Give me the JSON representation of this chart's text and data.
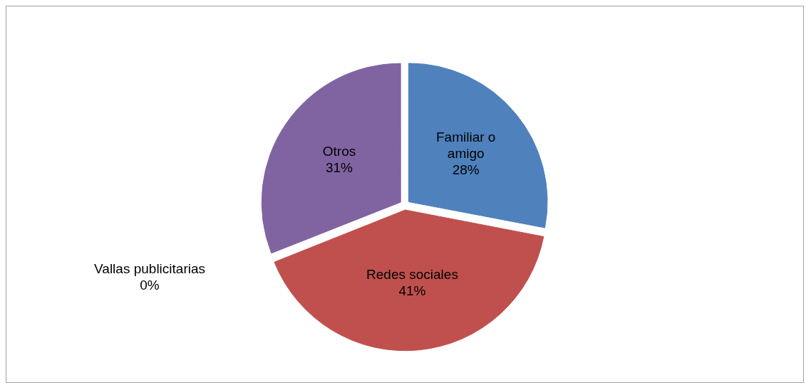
{
  "chart_data": {
    "type": "pie",
    "categories": [
      "Familiar o amigo",
      "Redes sociales",
      "Vallas publicitarias",
      "Otros"
    ],
    "values": [
      28,
      41,
      0,
      31
    ],
    "value_labels": [
      "28%",
      "41%",
      "0%",
      "31%"
    ],
    "colors": [
      "#4f81bd",
      "#c0504d",
      "#9bbb59",
      "#8064a2"
    ],
    "legend": false
  }
}
